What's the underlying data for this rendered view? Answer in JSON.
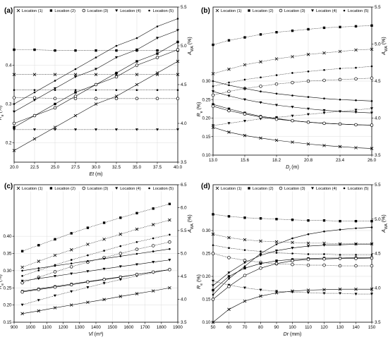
{
  "chart_data": [
    {
      "panel": "(a)",
      "type": "line",
      "x": [
        20,
        22.5,
        25,
        27.5,
        30,
        32.5,
        35,
        37.5,
        40
      ],
      "xticks": [
        "20.0",
        "22.5",
        "25.0",
        "27.5",
        "30.0",
        "32.5",
        "35.0",
        "37.5",
        "40.0"
      ],
      "xlabel": "Et (m)",
      "left": {
        "label": "R_e (%)",
        "lim": [
          0.15,
          0.55
        ],
        "ticks": [
          "0.2",
          "0.3",
          "0.4"
        ],
        "tickvals": [
          0.2,
          0.3,
          0.4
        ]
      },
      "right": {
        "label": "A_WA (%)",
        "lim": [
          3.5,
          5.5
        ],
        "ticks": [
          "3.5",
          "4.0",
          "4.5",
          "5.0",
          "5.5"
        ],
        "tickvals": [
          3.5,
          4.0,
          4.5,
          5.0,
          5.5
        ]
      },
      "re_series": [
        {
          "name": "Location (1)",
          "marker": "x",
          "values": [
            0.18,
            0.21,
            0.24,
            0.27,
            0.3,
            0.32,
            0.35,
            0.38,
            0.41
          ]
        },
        {
          "name": "Location (2)",
          "marker": "square",
          "values": [
            0.24,
            0.27,
            0.3,
            0.33,
            0.35,
            0.38,
            0.41,
            0.43,
            0.46
          ]
        },
        {
          "name": "Location (3)",
          "marker": "circle",
          "values": [
            0.25,
            0.27,
            0.29,
            0.32,
            0.35,
            0.37,
            0.4,
            0.42,
            0.44
          ]
        },
        {
          "name": "Location (4)",
          "marker": "triangle",
          "values": [
            0.28,
            0.31,
            0.34,
            0.37,
            0.39,
            0.42,
            0.44,
            0.47,
            0.49
          ]
        },
        {
          "name": "Location (5)",
          "marker": "dot",
          "values": [
            0.3,
            0.33,
            0.36,
            0.39,
            0.42,
            0.45,
            0.47,
            0.5,
            0.52
          ]
        }
      ],
      "awa_series": [
        {
          "name": "Location (1)",
          "marker": "x",
          "values": [
            4.63,
            4.63,
            4.63,
            4.63,
            4.63,
            4.63,
            4.63,
            4.63,
            4.63
          ]
        },
        {
          "name": "Location (2)",
          "marker": "square",
          "values": [
            4.95,
            4.95,
            4.94,
            4.94,
            4.94,
            4.94,
            4.94,
            4.94,
            4.94
          ]
        },
        {
          "name": "Location (3)",
          "marker": "circle",
          "values": [
            4.33,
            4.33,
            4.32,
            4.32,
            4.32,
            4.32,
            4.32,
            4.32,
            4.32
          ]
        },
        {
          "name": "Location (4)",
          "marker": "triangle",
          "values": [
            3.92,
            3.92,
            3.92,
            3.92,
            3.92,
            3.92,
            3.92,
            3.92,
            3.92
          ]
        },
        {
          "name": "Location (5)",
          "marker": "dot",
          "values": [
            4.43,
            4.43,
            4.43,
            4.43,
            4.43,
            4.43,
            4.43,
            4.43,
            4.43
          ]
        }
      ]
    },
    {
      "panel": "(b)",
      "type": "line",
      "x": [
        13.0,
        14.3,
        15.6,
        16.9,
        18.2,
        19.5,
        20.8,
        22.1,
        23.4,
        24.7,
        26.0
      ],
      "xticks": [
        "13.0",
        "15.6",
        "18.2",
        "20.8",
        "23.4",
        "26.0"
      ],
      "xlabel": "D_l (m)",
      "left": {
        "label": "R_e (%)",
        "lim": [
          0.1,
          0.5
        ],
        "ticks": [
          "0.10",
          "0.15",
          "0.20",
          "0.25",
          "0.30"
        ],
        "tickvals": [
          0.1,
          0.15,
          0.2,
          0.25,
          0.3
        ]
      },
      "right": {
        "label": "A_WA (%)",
        "lim": [
          3.5,
          5.5
        ],
        "ticks": [
          "3.5",
          "4.0",
          "4.5",
          "5.0",
          "5.5"
        ],
        "tickvals": [
          3.5,
          4.0,
          4.5,
          5.0,
          5.5
        ]
      },
      "re_series": [
        {
          "name": "Location (1)",
          "marker": "x",
          "values": [
            0.175,
            0.162,
            0.153,
            0.146,
            0.14,
            0.135,
            0.13,
            0.126,
            0.123,
            0.12,
            0.118
          ]
        },
        {
          "name": "Location (2)",
          "marker": "square",
          "values": [
            0.237,
            0.225,
            0.214,
            0.205,
            0.199,
            0.193,
            0.189,
            0.186,
            0.184,
            0.182,
            0.181
          ]
        },
        {
          "name": "Location (3)",
          "marker": "circle",
          "values": [
            0.232,
            0.22,
            0.211,
            0.203,
            0.197,
            0.193,
            0.189,
            0.186,
            0.184,
            0.182,
            0.181
          ]
        },
        {
          "name": "Location (4)",
          "marker": "triangle",
          "values": [
            0.272,
            0.26,
            0.25,
            0.242,
            0.235,
            0.23,
            0.225,
            0.221,
            0.218,
            0.216,
            0.214
          ]
        },
        {
          "name": "Location (5)",
          "marker": "dot",
          "values": [
            0.3,
            0.289,
            0.28,
            0.272,
            0.266,
            0.261,
            0.257,
            0.253,
            0.25,
            0.248,
            0.246
          ]
        }
      ],
      "awa_series": [
        {
          "name": "Location (1)",
          "marker": "x",
          "values": [
            4.6,
            4.66,
            4.72,
            4.76,
            4.8,
            4.83,
            4.86,
            4.88,
            4.9,
            4.92,
            4.93
          ]
        },
        {
          "name": "Location (2)",
          "marker": "square",
          "values": [
            4.99,
            5.05,
            5.09,
            5.13,
            5.16,
            5.18,
            5.2,
            5.22,
            5.23,
            5.24,
            5.25
          ]
        },
        {
          "name": "Location (3)",
          "marker": "circle",
          "values": [
            4.31,
            4.36,
            4.4,
            4.43,
            4.46,
            4.48,
            4.5,
            4.51,
            4.52,
            4.53,
            4.54
          ]
        },
        {
          "name": "Location (4)",
          "marker": "triangle",
          "values": [
            3.9,
            3.93,
            3.96,
            3.99,
            4.01,
            4.03,
            4.05,
            4.07,
            4.09,
            4.11,
            4.13
          ]
        },
        {
          "name": "Location (5)",
          "marker": "dot",
          "values": [
            4.43,
            4.48,
            4.52,
            4.55,
            4.58,
            4.61,
            4.63,
            4.65,
            4.67,
            4.68,
            4.7
          ]
        }
      ]
    },
    {
      "panel": "(c)",
      "type": "line",
      "x": [
        950,
        1050,
        1150,
        1250,
        1350,
        1450,
        1550,
        1650,
        1750,
        1850
      ],
      "xticks": [
        "900",
        "1000",
        "1100",
        "1200",
        "1300",
        "1400",
        "1500",
        "1600",
        "1700",
        "1800",
        "1900"
      ],
      "xlabel": "Vl (m³)",
      "left": {
        "label": "R_e (%)",
        "lim": [
          0.15,
          0.55
        ],
        "ticks": [
          "0.15",
          "0.20",
          "0.25",
          "0.30",
          "0.35",
          "0.40"
        ],
        "tickvals": [
          0.15,
          0.2,
          0.25,
          0.3,
          0.35,
          0.4
        ]
      },
      "right": {
        "label": "A_WA (%)",
        "lim": [
          3.5,
          6.5
        ],
        "ticks": [
          "3.5",
          "4.0",
          "4.5",
          "5.0",
          "5.5",
          "6.0",
          "6.5"
        ],
        "tickvals": [
          3.5,
          4.0,
          4.5,
          5.0,
          5.5,
          6.0,
          6.5
        ]
      },
      "re_series": [
        {
          "name": "Location (1)",
          "marker": "x",
          "values": [
            0.175,
            0.183,
            0.192,
            0.2,
            0.208,
            0.216,
            0.225,
            0.233,
            0.241,
            0.25
          ]
        },
        {
          "name": "Location (2)",
          "marker": "square",
          "values": [
            0.24,
            0.247,
            0.254,
            0.261,
            0.268,
            0.275,
            0.282,
            0.289,
            0.296,
            0.303
          ]
        },
        {
          "name": "Location (3)",
          "marker": "circle",
          "values": [
            0.238,
            0.245,
            0.252,
            0.259,
            0.267,
            0.274,
            0.281,
            0.289,
            0.296,
            0.303
          ]
        },
        {
          "name": "Location (4)",
          "marker": "triangle",
          "values": [
            0.27,
            0.277,
            0.284,
            0.291,
            0.298,
            0.305,
            0.312,
            0.318,
            0.325,
            0.331
          ]
        },
        {
          "name": "Location (5)",
          "marker": "dot",
          "values": [
            0.3,
            0.307,
            0.314,
            0.321,
            0.328,
            0.335,
            0.342,
            0.349,
            0.356,
            0.363
          ]
        }
      ],
      "awa_series": [
        {
          "name": "Location (1)",
          "marker": "x",
          "values": [
            4.7,
            4.83,
            4.96,
            5.08,
            5.2,
            5.31,
            5.42,
            5.53,
            5.63,
            5.73
          ]
        },
        {
          "name": "Location (2)",
          "marker": "square",
          "values": [
            5.05,
            5.18,
            5.31,
            5.44,
            5.56,
            5.67,
            5.78,
            5.88,
            5.98,
            6.08
          ]
        },
        {
          "name": "Location (3)",
          "marker": "circle",
          "values": [
            4.36,
            4.48,
            4.6,
            4.71,
            4.81,
            4.91,
            5.0,
            5.09,
            5.17,
            5.25
          ]
        },
        {
          "name": "Location (4)",
          "marker": "triangle",
          "values": [
            3.88,
            3.98,
            4.08,
            4.17,
            4.26,
            4.35,
            4.43,
            4.51,
            4.58,
            4.65
          ]
        },
        {
          "name": "Location (5)",
          "marker": "dot",
          "values": [
            4.51,
            4.63,
            4.75,
            4.86,
            4.96,
            5.06,
            5.16,
            5.25,
            5.33,
            5.41
          ]
        }
      ]
    },
    {
      "panel": "(d)",
      "type": "line",
      "x": [
        50,
        60,
        70,
        80,
        90,
        100,
        110,
        120,
        130,
        140,
        150
      ],
      "xticks": [
        "50",
        "60",
        "70",
        "80",
        "90",
        "100",
        "110",
        "120",
        "130",
        "140",
        "150"
      ],
      "xlabel": "Dr (mm)",
      "left": {
        "label": "R_e (%)",
        "lim": [
          0.1,
          0.4
        ],
        "ticks": [
          "0.10",
          "0.15",
          "0.20",
          "0.25",
          "0.30"
        ],
        "tickvals": [
          0.1,
          0.15,
          0.2,
          0.25,
          0.3
        ]
      },
      "right": {
        "label": "A_WA (%)",
        "lim": [
          3.5,
          5.5
        ],
        "ticks": [
          "3.5",
          "4.0",
          "4.5",
          "5.0",
          "5.5"
        ],
        "tickvals": [
          3.5,
          4.0,
          4.5,
          5.0,
          5.5
        ]
      },
      "re_series": [
        {
          "name": "Location (1)",
          "marker": "x",
          "values": [
            0.1,
            0.128,
            0.146,
            0.157,
            0.164,
            0.168,
            0.17,
            0.171,
            0.172,
            0.172,
            0.172
          ]
        },
        {
          "name": "Location (2)",
          "marker": "square",
          "values": [
            0.17,
            0.2,
            0.218,
            0.228,
            0.234,
            0.237,
            0.239,
            0.24,
            0.24,
            0.241,
            0.241
          ]
        },
        {
          "name": "Location (3)",
          "marker": "circle",
          "values": [
            0.15,
            0.178,
            0.202,
            0.218,
            0.228,
            0.234,
            0.237,
            0.238,
            0.239,
            0.239,
            0.24
          ]
        },
        {
          "name": "Location (4)",
          "marker": "triangle",
          "values": [
            0.18,
            0.208,
            0.23,
            0.246,
            0.256,
            0.262,
            0.266,
            0.268,
            0.269,
            0.27,
            0.27
          ]
        },
        {
          "name": "Location (5)",
          "marker": "dot",
          "values": [
            0.16,
            0.195,
            0.222,
            0.25,
            0.27,
            0.283,
            0.292,
            0.298,
            0.302,
            0.305,
            0.307
          ]
        }
      ],
      "awa_series": [
        {
          "name": "Location (1)",
          "marker": "x",
          "values": [
            4.78,
            4.73,
            4.7,
            4.68,
            4.67,
            4.66,
            4.65,
            4.65,
            4.64,
            4.64,
            4.64
          ]
        },
        {
          "name": "Location (2)",
          "marker": "square",
          "values": [
            5.07,
            5.04,
            5.02,
            5.01,
            5.0,
            4.99,
            4.98,
            4.98,
            4.97,
            4.97,
            4.97
          ]
        },
        {
          "name": "Location (3)",
          "marker": "circle",
          "values": [
            4.5,
            4.44,
            4.4,
            4.37,
            4.35,
            4.34,
            4.33,
            4.33,
            4.32,
            4.32,
            4.32
          ]
        },
        {
          "name": "Location (4)",
          "marker": "triangle",
          "values": [
            4.1,
            4.04,
            4.0,
            3.97,
            3.95,
            3.94,
            3.93,
            3.92,
            3.92,
            3.91,
            3.91
          ]
        },
        {
          "name": "Location (5)",
          "marker": "dot",
          "values": [
            4.62,
            4.58,
            4.55,
            4.53,
            4.51,
            4.5,
            4.49,
            4.49,
            4.48,
            4.48,
            4.48
          ]
        }
      ]
    }
  ]
}
